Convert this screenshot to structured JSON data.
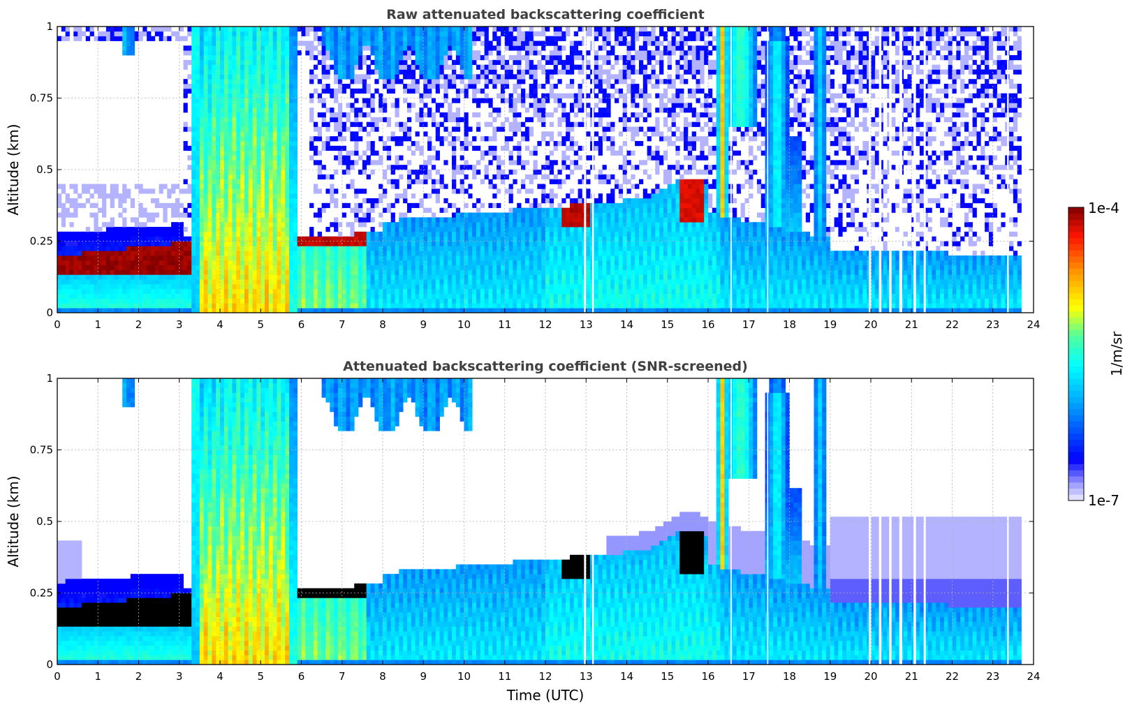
{
  "chart_data": [
    {
      "type": "heatmap",
      "title": "Raw attenuated backscattering coefficient",
      "ylabel": "Altitude (km)",
      "xlabel": "",
      "xlim": [
        0,
        24
      ],
      "ylim": [
        0,
        1
      ],
      "x_ticks": [
        "0",
        "1",
        "2",
        "3",
        "4",
        "5",
        "6",
        "7",
        "8",
        "9",
        "10",
        "11",
        "12",
        "13",
        "14",
        "15",
        "16",
        "17",
        "18",
        "19",
        "20",
        "21",
        "22",
        "23",
        "24"
      ],
      "y_ticks": [
        "0",
        "0.25",
        "0.5",
        "0.75",
        "1"
      ],
      "grid": true,
      "screened": false,
      "features": [
        {
          "start": 0.0,
          "end": 3.4,
          "top": 0.28,
          "aerosol_top": 0.2,
          "bottom": 0.13,
          "kind": "dense aerosol layer"
        },
        {
          "start": 3.3,
          "end": 5.9,
          "top": 1.0,
          "kind": "high backscatter column"
        },
        {
          "start": 6.0,
          "end": 7.6,
          "top": 0.29,
          "kind": "dense aerosol layer"
        },
        {
          "start": 12.4,
          "end": 13.1,
          "top": 0.4,
          "kind": "cloud"
        },
        {
          "start": 15.3,
          "end": 15.9,
          "top": 0.42,
          "kind": "cloud"
        },
        {
          "start": 16.2,
          "end": 18.9,
          "top": 1.0,
          "kind": "precipitation streaks"
        }
      ]
    },
    {
      "type": "heatmap",
      "title": "Attenuated backscattering coefficient (SNR-screened)",
      "ylabel": "Altitude (km)",
      "xlabel": "Time (UTC)",
      "xlim": [
        0,
        24
      ],
      "ylim": [
        0,
        1
      ],
      "x_ticks": [
        "0",
        "1",
        "2",
        "3",
        "4",
        "5",
        "6",
        "7",
        "8",
        "9",
        "10",
        "11",
        "12",
        "13",
        "14",
        "15",
        "16",
        "17",
        "18",
        "19",
        "20",
        "21",
        "22",
        "23",
        "24"
      ],
      "y_ticks": [
        "0",
        "0.25",
        "0.5",
        "0.75",
        "1"
      ],
      "grid": true,
      "screened": true,
      "colorbar": {
        "label": "1/m/sr",
        "min_label": "1e-7",
        "max_label": "1e-4",
        "scale": "log",
        "colormap": "jet",
        "colors": [
          "#eeeeff",
          "#0000ff",
          "#00ffff",
          "#ffff00",
          "#ff0000",
          "#800000"
        ]
      }
    }
  ]
}
